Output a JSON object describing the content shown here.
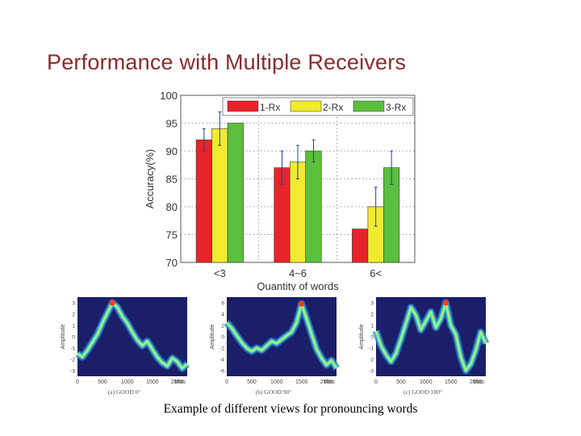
{
  "slide": {
    "title": "Performance with Multiple Receivers",
    "caption": "Example of different views for pronouncing words"
  },
  "chart_data": [
    {
      "type": "bar",
      "categories": [
        "<3",
        "4~6",
        "6<"
      ],
      "series": [
        {
          "name": "1-Rx",
          "color": "#e8242a",
          "values": [
            92,
            87,
            76
          ],
          "errors": [
            2,
            3,
            0
          ]
        },
        {
          "name": "2-Rx",
          "color": "#f2ea2e",
          "values": [
            94,
            88,
            80
          ],
          "errors": [
            3,
            3,
            3.5
          ]
        },
        {
          "name": "3-Rx",
          "color": "#5cbf3e",
          "values": [
            95,
            90,
            87
          ],
          "errors": [
            0,
            2,
            3
          ]
        }
      ],
      "xlabel": "Quantity of words",
      "ylabel": "Accuracy(%)",
      "ylim": [
        70,
        100
      ],
      "yticks": [
        70,
        75,
        80,
        85,
        90,
        95,
        100
      ],
      "grid": true,
      "legend": "top"
    },
    {
      "type": "line",
      "caption": "(a) GOOD 0°",
      "xlabel": "t/ms",
      "ylabel": "Amplitude",
      "xticks": [
        0,
        500,
        1000,
        1500,
        2000
      ],
      "yticks": [
        3,
        2,
        1,
        0,
        -1,
        -2,
        -3
      ],
      "xlim": [
        0,
        2200
      ],
      "ylim": [
        -3.5,
        3.5
      ],
      "series": [
        {
          "x": [
            0,
            100,
            200,
            300,
            400,
            500,
            600,
            700,
            800,
            900,
            1000,
            1100,
            1200,
            1300,
            1400,
            1500,
            1600,
            1700,
            1800,
            1900,
            2000,
            2100,
            2200
          ],
          "y": [
            -1.5,
            -1.8,
            -1.2,
            -0.5,
            0.2,
            1.2,
            2.1,
            3.0,
            2.6,
            1.8,
            1.2,
            0.4,
            -0.3,
            -0.8,
            -0.4,
            -1.1,
            -1.8,
            -2.3,
            -2.6,
            -1.9,
            -2.2,
            -2.8,
            -2.4
          ]
        }
      ]
    },
    {
      "type": "line",
      "caption": "(b) GOOD 90°",
      "xlabel": "t/ms",
      "ylabel": "Amplitude",
      "xticks": [
        0,
        500,
        1000,
        1500,
        2000
      ],
      "yticks": [
        6,
        4,
        2,
        0,
        -2,
        -4,
        -6
      ],
      "xlim": [
        0,
        2200
      ],
      "ylim": [
        -7,
        7
      ],
      "series": [
        {
          "x": [
            0,
            100,
            200,
            300,
            400,
            500,
            600,
            700,
            800,
            900,
            1000,
            1100,
            1200,
            1300,
            1400,
            1500,
            1600,
            1700,
            1800,
            1900,
            2000,
            2100,
            2200
          ],
          "y": [
            2.5,
            1.5,
            0.2,
            -1.0,
            -2.0,
            -2.6,
            -2.0,
            -2.4,
            -1.6,
            -0.8,
            -1.2,
            -0.5,
            0.2,
            0.8,
            2.5,
            5.8,
            3.2,
            0.5,
            -2.2,
            -3.8,
            -5.0,
            -4.2,
            -5.6
          ]
        }
      ]
    },
    {
      "type": "line",
      "caption": "(c) GOOD 180°",
      "xlabel": "t/ms",
      "ylabel": "Amplitude",
      "xticks": [
        0,
        500,
        1000,
        1500,
        2000
      ],
      "yticks": [
        3,
        2,
        1,
        0,
        -1,
        -2,
        -3
      ],
      "xlim": [
        0,
        2200
      ],
      "ylim": [
        -3.5,
        3.5
      ],
      "series": [
        {
          "x": [
            0,
            100,
            200,
            300,
            400,
            500,
            600,
            700,
            800,
            900,
            1000,
            1100,
            1200,
            1300,
            1400,
            1500,
            1600,
            1700,
            1800,
            1900,
            2000,
            2100,
            2200
          ],
          "y": [
            0.5,
            -0.8,
            -1.6,
            -2.2,
            -1.5,
            -0.2,
            1.2,
            2.6,
            1.9,
            0.6,
            1.4,
            2.2,
            0.8,
            1.6,
            3.0,
            1.0,
            0.2,
            -1.8,
            -3.0,
            -2.4,
            -1.2,
            0.4,
            -0.6
          ]
        }
      ]
    }
  ]
}
